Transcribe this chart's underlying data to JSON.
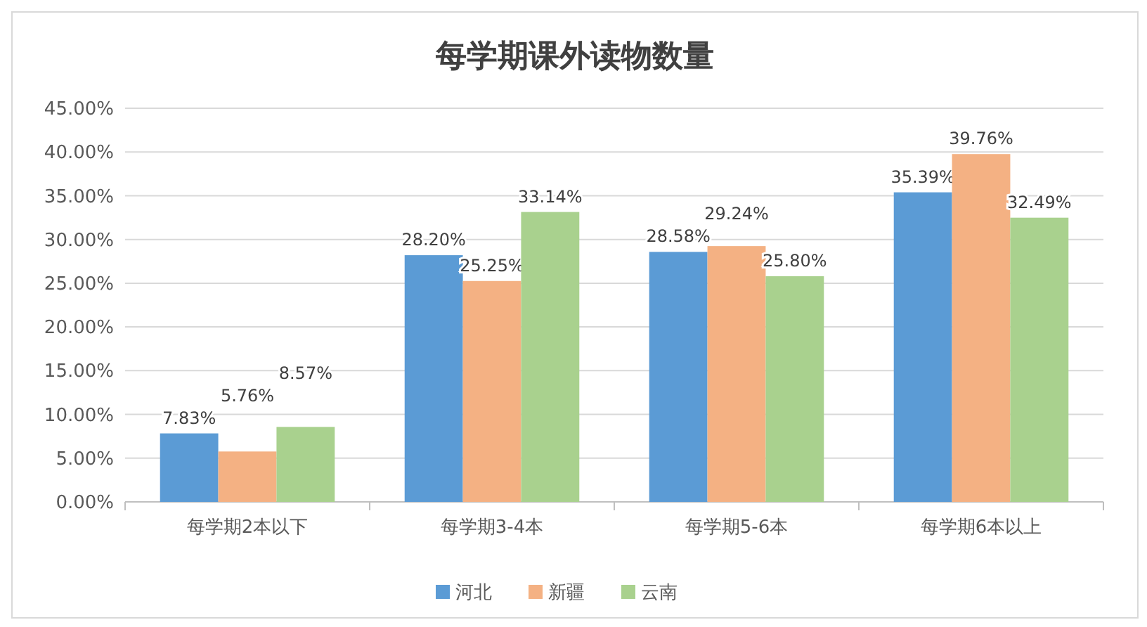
{
  "chart_data": {
    "type": "bar",
    "title": "每学期课外读物数量",
    "categories": [
      "每学期2本以下",
      "每学期3-4本",
      "每学期5-6本",
      "每学期6本以上"
    ],
    "series": [
      {
        "name": "河北",
        "color": "#5b9bd5",
        "values": [
          7.83,
          28.2,
          28.58,
          35.39
        ],
        "value_labels": [
          "7.83%",
          "28.20%",
          "28.58%",
          "35.39%"
        ]
      },
      {
        "name": "新疆",
        "color": "#f4b183",
        "values": [
          5.76,
          25.25,
          29.24,
          39.76
        ],
        "value_labels": [
          "5.76%",
          "25.25%",
          "29.24%",
          "39.76%"
        ]
      },
      {
        "name": "云南",
        "color": "#a9d18e",
        "values": [
          8.57,
          33.14,
          25.8,
          32.49
        ],
        "value_labels": [
          "8.57%",
          "33.14%",
          "25.80%",
          "32.49%"
        ]
      }
    ],
    "ylim": [
      0,
      45
    ],
    "yticks": [
      {
        "value": 0,
        "label": "0.00%"
      },
      {
        "value": 5,
        "label": "5.00%"
      },
      {
        "value": 10,
        "label": "10.00%"
      },
      {
        "value": 15,
        "label": "15.00%"
      },
      {
        "value": 20,
        "label": "20.00%"
      },
      {
        "value": 25,
        "label": "25.00%"
      },
      {
        "value": 30,
        "label": "30.00%"
      },
      {
        "value": 35,
        "label": "35.00%"
      },
      {
        "value": 40,
        "label": "40.00%"
      },
      {
        "value": 45,
        "label": "45.00%"
      }
    ],
    "grid": "y",
    "legend": "bottom"
  }
}
